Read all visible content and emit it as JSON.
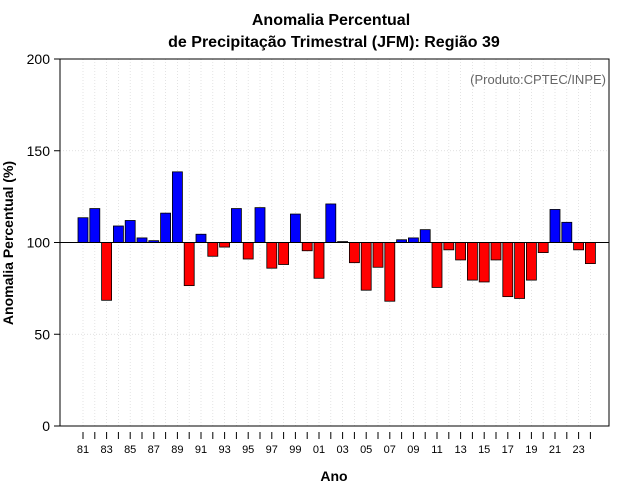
{
  "chart_data": {
    "type": "bar",
    "title": "Anomalia Percentual",
    "subtitle": "de Precipitação Trimestral (JFM): Região 39",
    "xlabel": "Ano",
    "ylabel": "Anomalia Percentual (%)",
    "credit": "(Produto:CPTEC/INPE)",
    "ylim": [
      0,
      200
    ],
    "yticks": [
      "0",
      "50",
      "100",
      "150",
      "200"
    ],
    "ytick_values": [
      0,
      50,
      100,
      150,
      200
    ],
    "baseline": 100,
    "grid": true,
    "xtick_labels": [
      "81",
      "83",
      "85",
      "87",
      "89",
      "91",
      "93",
      "95",
      "97",
      "99",
      "01",
      "03",
      "05",
      "07",
      "09",
      "11",
      "13",
      "15",
      "17",
      "19",
      "21",
      "23"
    ],
    "categories": [
      "1981",
      "1982",
      "1983",
      "1984",
      "1985",
      "1986",
      "1987",
      "1988",
      "1989",
      "1990",
      "1991",
      "1992",
      "1993",
      "1994",
      "1995",
      "1996",
      "1997",
      "1998",
      "1999",
      "2000",
      "2001",
      "2002",
      "2003",
      "2004",
      "2005",
      "2006",
      "2007",
      "2008",
      "2009",
      "2010",
      "2011",
      "2012",
      "2013",
      "2014",
      "2015",
      "2016",
      "2017",
      "2018",
      "2019",
      "2020",
      "2021",
      "2022",
      "2023",
      "2024"
    ],
    "values": [
      113.5,
      118.5,
      68.5,
      109,
      112,
      102.5,
      101,
      116,
      138.5,
      76.5,
      104.5,
      92.5,
      97.5,
      118.5,
      91,
      119,
      86,
      88,
      115.5,
      95.5,
      80.5,
      121,
      100.5,
      89,
      74,
      86.5,
      68,
      101.5,
      102.5,
      107,
      75.5,
      96,
      90.5,
      79.5,
      78.5,
      90.5,
      70.5,
      69.5,
      79.5,
      94.5,
      118,
      111,
      96,
      88.5
    ],
    "colors": {
      "above": "#0000ff",
      "below": "#ff0000",
      "edge": "#000000",
      "credit": "#666666"
    }
  }
}
